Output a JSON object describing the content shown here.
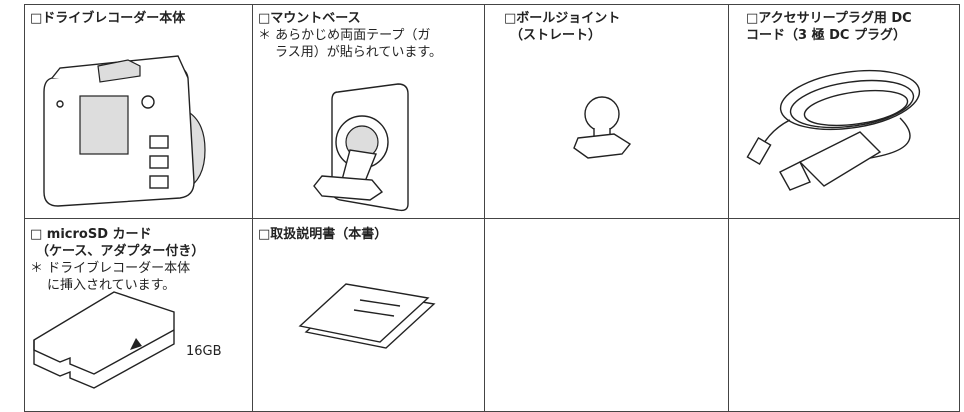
{
  "cells": [
    {
      "title": [
        "□ドライブレコーダー本体"
      ]
    },
    {
      "title": [
        "□マウントベース"
      ],
      "note": [
        "＊ あらかじめ両面テープ（ガ",
        "ラス用）が貼られています。"
      ]
    },
    {
      "title": [
        "□ボールジョイント",
        "（ストレート）"
      ]
    },
    {
      "title": [
        "□アクセサリープラグ用 DC",
        "コード（3 極 DC プラグ）"
      ]
    },
    {
      "title": [
        "□ microSD カード",
        "（ケース、アダプター付き）"
      ],
      "note": [
        "＊ ドライブレコーダー本体",
        "に挿入されています。"
      ],
      "label": "16GB"
    },
    {
      "title": [
        "□取扱説明書（本書）"
      ]
    }
  ]
}
